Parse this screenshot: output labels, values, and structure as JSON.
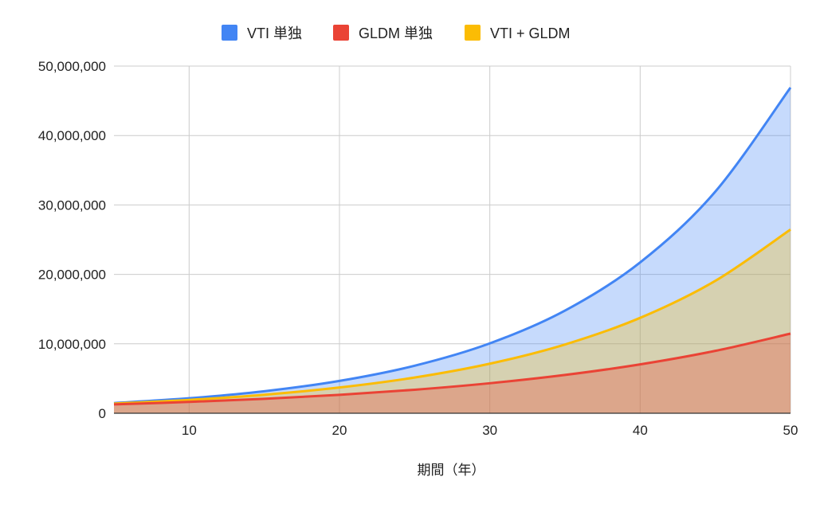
{
  "chart_data": {
    "type": "area",
    "title": "",
    "xlabel": "期間（年）",
    "ylabel": "",
    "xlim": [
      5,
      50
    ],
    "ylim": [
      0,
      50000000
    ],
    "x_ticks": [
      "10",
      "20",
      "30",
      "40",
      "50"
    ],
    "y_ticks": [
      "0",
      "10,000,000",
      "20,000,000",
      "30,000,000",
      "40,000,000",
      "50,000,000"
    ],
    "grid": true,
    "legend_position": "top",
    "x": [
      5,
      10,
      15,
      20,
      25,
      30,
      35,
      40,
      45,
      50
    ],
    "series": [
      {
        "name": "VTI 単独",
        "color": "#4285F4",
        "values": [
          1469000,
          2159000,
          3172000,
          4661000,
          6848000,
          10063000,
          14785000,
          21725000,
          31920000,
          46902000
        ]
      },
      {
        "name": "GLDM 単独",
        "color": "#EA4335",
        "values": [
          1276000,
          1629000,
          2079000,
          2653000,
          3386000,
          4322000,
          5516000,
          7040000,
          8985000,
          11467000
        ]
      },
      {
        "name": "VTI  + GLDM",
        "color": "#FBBC04",
        "values": [
          1387000,
          1925000,
          2672000,
          3707000,
          5144000,
          7137000,
          9904000,
          13740000,
          19070000,
          26460000
        ]
      }
    ]
  }
}
